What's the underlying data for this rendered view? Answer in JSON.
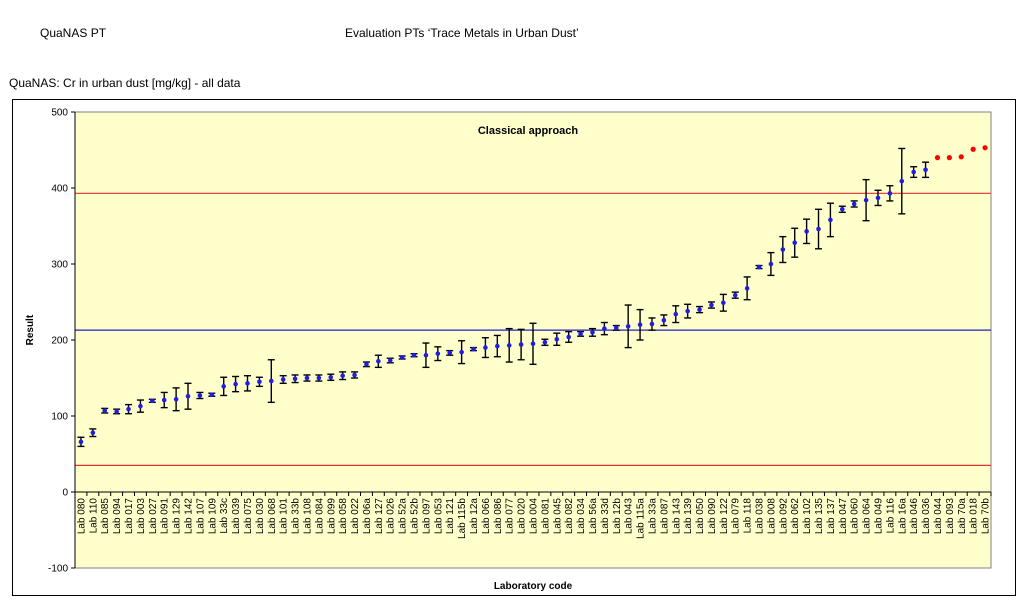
{
  "header": {
    "left": "QuaNAS PT",
    "center": "Evaluation PTs ‘Trace Metals in Urban Dust’",
    "subtitle": "QuaNAS: Cr in urban dust [mg/kg] - all data"
  },
  "colors": {
    "plot_bg": "#FFFFCC",
    "point": "#1F1FE0",
    "outlier": "#FF0000",
    "limit_line": "#E03030",
    "mean_line": "#2020C0",
    "error_bar": "#000000"
  },
  "chart_data": {
    "type": "scatter",
    "title": "Classical approach",
    "xlabel": "Laboratory code",
    "ylabel": "Result",
    "ylim": [
      -100,
      500
    ],
    "yticks": [
      -100,
      0,
      100,
      200,
      300,
      400,
      500
    ],
    "grid": false,
    "reference_lines": [
      {
        "value": 213,
        "kind": "mean"
      },
      {
        "value": 393,
        "kind": "upper-limit"
      },
      {
        "value": 35,
        "kind": "lower-limit"
      }
    ],
    "points": [
      {
        "lab": "Lab 080",
        "value": 66,
        "err": 6
      },
      {
        "lab": "Lab 110",
        "value": 78,
        "err": 5
      },
      {
        "lab": "Lab 085",
        "value": 107,
        "err": 3
      },
      {
        "lab": "Lab 094",
        "value": 106,
        "err": 3
      },
      {
        "lab": "Lab 017",
        "value": 109,
        "err": 6
      },
      {
        "lab": "Lab 003",
        "value": 113,
        "err": 8
      },
      {
        "lab": "Lab 027",
        "value": 120,
        "err": 2
      },
      {
        "lab": "Lab 091",
        "value": 121,
        "err": 10
      },
      {
        "lab": "Lab 129",
        "value": 122,
        "err": 15
      },
      {
        "lab": "Lab 142",
        "value": 126,
        "err": 17
      },
      {
        "lab": "Lab 107",
        "value": 127,
        "err": 4
      },
      {
        "lab": "Lab 109",
        "value": 128,
        "err": 2
      },
      {
        "lab": "Lab 33c",
        "value": 139,
        "err": 12
      },
      {
        "lab": "Lab 039",
        "value": 142,
        "err": 10
      },
      {
        "lab": "Lab 075",
        "value": 143,
        "err": 10
      },
      {
        "lab": "Lab 030",
        "value": 145,
        "err": 6
      },
      {
        "lab": "Lab 068",
        "value": 146,
        "err": 28
      },
      {
        "lab": "Lab 101",
        "value": 148,
        "err": 5
      },
      {
        "lab": "Lab 33b",
        "value": 149,
        "err": 5
      },
      {
        "lab": "Lab 108",
        "value": 150,
        "err": 4
      },
      {
        "lab": "Lab 084",
        "value": 150,
        "err": 4
      },
      {
        "lab": "Lab 099",
        "value": 151,
        "err": 4
      },
      {
        "lab": "Lab 058",
        "value": 153,
        "err": 5
      },
      {
        "lab": "Lab 022",
        "value": 154,
        "err": 4
      },
      {
        "lab": "Lab 06a",
        "value": 168,
        "err": 3
      },
      {
        "lab": "Lab 127",
        "value": 172,
        "err": 8
      },
      {
        "lab": "Lab 026",
        "value": 173,
        "err": 3
      },
      {
        "lab": "Lab 52a",
        "value": 177,
        "err": 2
      },
      {
        "lab": "Lab 52b",
        "value": 180,
        "err": 2
      },
      {
        "lab": "Lab 097",
        "value": 180,
        "err": 16
      },
      {
        "lab": "Lab 053",
        "value": 182,
        "err": 9
      },
      {
        "lab": "Lab 121",
        "value": 183,
        "err": 3
      },
      {
        "lab": "Lab 115b",
        "value": 184,
        "err": 15
      },
      {
        "lab": "Lab 12a",
        "value": 188,
        "err": 2
      },
      {
        "lab": "Lab 066",
        "value": 190,
        "err": 13
      },
      {
        "lab": "Lab 086",
        "value": 192,
        "err": 14
      },
      {
        "lab": "Lab 077",
        "value": 193,
        "err": 22
      },
      {
        "lab": "Lab 020",
        "value": 194,
        "err": 20
      },
      {
        "lab": "Lab 004",
        "value": 195,
        "err": 27
      },
      {
        "lab": "Lab 081",
        "value": 197,
        "err": 4
      },
      {
        "lab": "Lab 045",
        "value": 201,
        "err": 8
      },
      {
        "lab": "Lab 082",
        "value": 204,
        "err": 7
      },
      {
        "lab": "Lab 034",
        "value": 208,
        "err": 3
      },
      {
        "lab": "Lab 56a",
        "value": 210,
        "err": 5
      },
      {
        "lab": "Lab 33d",
        "value": 215,
        "err": 8
      },
      {
        "lab": "Lab 12b",
        "value": 216,
        "err": 3
      },
      {
        "lab": "Lab 043",
        "value": 218,
        "err": 28
      },
      {
        "lab": "Lab 115a",
        "value": 220,
        "err": 20
      },
      {
        "lab": "Lab 33a",
        "value": 221,
        "err": 8
      },
      {
        "lab": "Lab 087",
        "value": 226,
        "err": 7
      },
      {
        "lab": "Lab 143",
        "value": 234,
        "err": 11
      },
      {
        "lab": "Lab 139",
        "value": 238,
        "err": 9
      },
      {
        "lab": "Lab 050",
        "value": 240,
        "err": 4
      },
      {
        "lab": "Lab 090",
        "value": 246,
        "err": 4
      },
      {
        "lab": "Lab 122",
        "value": 249,
        "err": 11
      },
      {
        "lab": "Lab 079",
        "value": 259,
        "err": 4
      },
      {
        "lab": "Lab 118",
        "value": 268,
        "err": 15
      },
      {
        "lab": "Lab 038",
        "value": 296,
        "err": 2
      },
      {
        "lab": "Lab 008",
        "value": 300,
        "err": 15
      },
      {
        "lab": "Lab 092",
        "value": 319,
        "err": 17
      },
      {
        "lab": "Lab 062",
        "value": 328,
        "err": 19
      },
      {
        "lab": "Lab 102",
        "value": 343,
        "err": 16
      },
      {
        "lab": "Lab 135",
        "value": 346,
        "err": 26
      },
      {
        "lab": "Lab 137",
        "value": 358,
        "err": 22
      },
      {
        "lab": "Lab 047",
        "value": 372,
        "err": 4
      },
      {
        "lab": "Lab 060",
        "value": 379,
        "err": 4
      },
      {
        "lab": "Lab 064",
        "value": 384,
        "err": 27
      },
      {
        "lab": "Lab 049",
        "value": 387,
        "err": 10
      },
      {
        "lab": "Lab 116",
        "value": 393,
        "err": 10
      },
      {
        "lab": "Lab 16a",
        "value": 409,
        "err": 43
      },
      {
        "lab": "Lab 046",
        "value": 421,
        "err": 7
      },
      {
        "lab": "Lab 036",
        "value": 424,
        "err": 10
      },
      {
        "lab": "Lab 044",
        "value": 440,
        "err": 0,
        "outlier": true
      },
      {
        "lab": "Lab 093",
        "value": 440,
        "err": 0,
        "outlier": true
      },
      {
        "lab": "Lab 70a",
        "value": 441,
        "err": 0,
        "outlier": true
      },
      {
        "lab": "Lab 018",
        "value": 451,
        "err": 0,
        "outlier": true
      },
      {
        "lab": "Lab 70b",
        "value": 453,
        "err": 0,
        "outlier": true
      }
    ]
  }
}
